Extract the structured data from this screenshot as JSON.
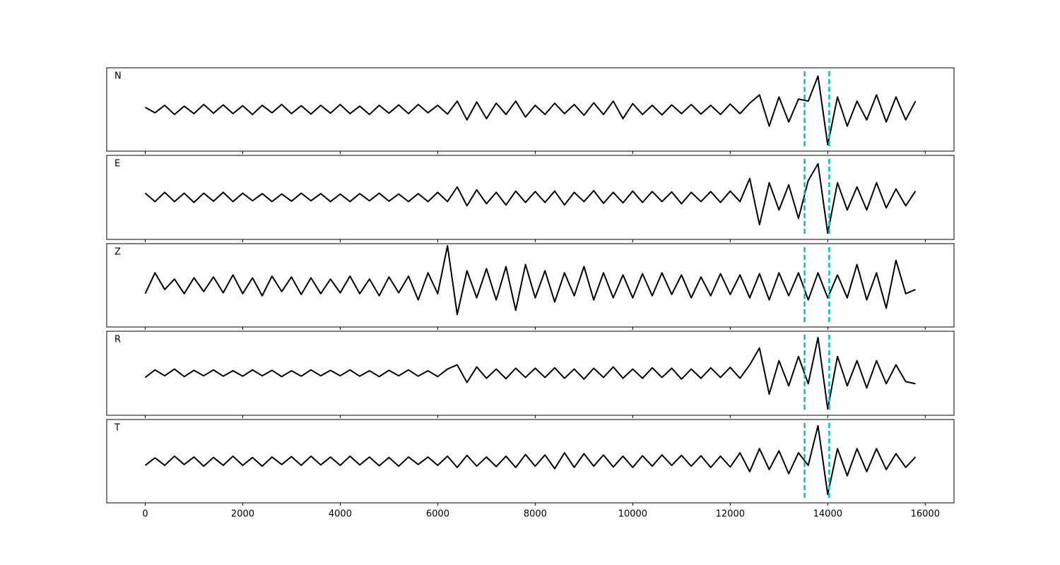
{
  "chart_data": {
    "type": "line",
    "xlim": [
      -790,
      16590
    ],
    "xticks": [
      0,
      2000,
      4000,
      6000,
      8000,
      10000,
      12000,
      14000,
      16000
    ],
    "ylim": [
      -1,
      1
    ],
    "vlines": [
      13525,
      14030
    ],
    "vline_color": "#00bfbf",
    "x": [
      0,
      200,
      400,
      600,
      800,
      1000,
      1200,
      1400,
      1600,
      1800,
      2000,
      2200,
      2400,
      2600,
      2800,
      3000,
      3200,
      3400,
      3600,
      3800,
      4000,
      4200,
      4400,
      4600,
      4800,
      5000,
      5200,
      5400,
      5600,
      5800,
      6000,
      6200,
      6400,
      6600,
      6800,
      7000,
      7200,
      7400,
      7600,
      7800,
      8000,
      8200,
      8400,
      8600,
      8800,
      9000,
      9200,
      9400,
      9600,
      9800,
      10000,
      10200,
      10400,
      10600,
      10800,
      11000,
      11200,
      11400,
      11600,
      11800,
      12000,
      12200,
      12400,
      12600,
      12800,
      13000,
      13200,
      13400,
      13600,
      13800,
      14000,
      14200,
      14400,
      14600,
      14800,
      15000,
      15200,
      15400,
      15600,
      15800
    ],
    "series": [
      {
        "name": "N",
        "color": "#000000",
        "values": [
          0.05,
          -0.08,
          0.1,
          -0.12,
          0.08,
          -0.1,
          0.12,
          -0.09,
          0.11,
          -0.1,
          0.09,
          -0.12,
          0.1,
          -0.08,
          0.12,
          -0.1,
          0.09,
          -0.11,
          0.1,
          -0.09,
          0.12,
          -0.1,
          0.08,
          -0.12,
          0.1,
          -0.09,
          0.11,
          -0.1,
          0.12,
          -0.08,
          0.1,
          -0.11,
          0.2,
          -0.25,
          0.18,
          -0.22,
          0.15,
          -0.12,
          0.2,
          -0.18,
          0.1,
          -0.12,
          0.15,
          -0.1,
          0.12,
          -0.14,
          0.16,
          -0.12,
          0.2,
          -0.22,
          0.14,
          -0.12,
          0.1,
          -0.13,
          0.11,
          -0.1,
          0.12,
          -0.11,
          0.1,
          -0.12,
          0.13,
          -0.1,
          0.15,
          0.35,
          -0.4,
          0.3,
          -0.3,
          0.25,
          0.2,
          0.8,
          -0.85,
          0.3,
          -0.4,
          0.2,
          -0.25,
          0.35,
          -0.3,
          0.3,
          -0.25,
          0.2
        ]
      },
      {
        "name": "E",
        "color": "#000000",
        "values": [
          0.1,
          -0.1,
          0.12,
          -0.1,
          0.1,
          -0.12,
          0.1,
          -0.09,
          0.12,
          -0.1,
          0.1,
          -0.08,
          0.09,
          -0.1,
          0.08,
          -0.09,
          0.1,
          -0.08,
          0.09,
          -0.1,
          0.08,
          -0.1,
          0.09,
          -0.08,
          0.1,
          -0.09,
          0.08,
          -0.1,
          0.09,
          -0.1,
          0.12,
          -0.1,
          0.25,
          -0.2,
          0.18,
          -0.15,
          0.12,
          -0.18,
          0.15,
          -0.12,
          0.14,
          -0.12,
          0.15,
          -0.18,
          0.12,
          -0.1,
          0.16,
          -0.14,
          0.12,
          -0.13,
          0.15,
          -0.12,
          0.14,
          -0.1,
          0.13,
          -0.15,
          0.12,
          -0.1,
          0.14,
          -0.12,
          0.15,
          -0.1,
          0.45,
          -0.65,
          0.35,
          -0.3,
          0.3,
          -0.5,
          0.4,
          0.8,
          -0.85,
          0.35,
          -0.3,
          0.25,
          -0.3,
          0.35,
          -0.25,
          0.2,
          -0.2,
          0.15
        ]
      },
      {
        "name": "Z",
        "color": "#000000",
        "values": [
          -0.2,
          0.3,
          -0.1,
          0.15,
          -0.2,
          0.18,
          -0.15,
          0.2,
          -0.18,
          0.25,
          -0.2,
          0.18,
          -0.25,
          0.22,
          -0.15,
          0.2,
          -0.22,
          0.18,
          -0.2,
          0.15,
          -0.18,
          0.22,
          -0.2,
          0.15,
          -0.25,
          0.2,
          -0.18,
          0.22,
          -0.35,
          0.3,
          -0.2,
          0.95,
          -0.7,
          0.35,
          -0.3,
          0.4,
          -0.35,
          0.45,
          -0.6,
          0.5,
          -0.3,
          0.35,
          -0.4,
          0.3,
          -0.25,
          0.45,
          -0.35,
          0.3,
          -0.3,
          0.25,
          -0.3,
          0.28,
          -0.25,
          0.3,
          -0.22,
          0.25,
          -0.3,
          0.2,
          -0.25,
          0.28,
          -0.22,
          0.25,
          -0.3,
          0.28,
          -0.35,
          0.3,
          -0.25,
          0.3,
          -0.35,
          0.3,
          -0.3,
          0.25,
          -0.3,
          0.5,
          -0.35,
          0.3,
          -0.55,
          0.6,
          -0.2,
          -0.1
        ]
      },
      {
        "name": "R",
        "color": "#000000",
        "values": [
          -0.1,
          0.08,
          -0.06,
          0.1,
          -0.08,
          0.07,
          -0.06,
          0.08,
          -0.07,
          0.06,
          -0.07,
          0.08,
          -0.06,
          0.07,
          -0.08,
          0.06,
          -0.07,
          0.08,
          -0.06,
          0.07,
          -0.06,
          0.08,
          -0.07,
          0.06,
          -0.08,
          0.07,
          -0.06,
          0.08,
          -0.07,
          0.06,
          -0.08,
          0.1,
          0.2,
          -0.22,
          0.15,
          -0.12,
          0.1,
          -0.13,
          0.12,
          -0.1,
          0.12,
          -0.1,
          0.13,
          -0.12,
          0.1,
          -0.14,
          0.12,
          -0.1,
          0.15,
          -0.12,
          0.1,
          -0.12,
          0.13,
          -0.1,
          0.12,
          -0.14,
          0.1,
          -0.12,
          0.13,
          -0.1,
          0.14,
          -0.12,
          0.2,
          0.6,
          -0.5,
          0.3,
          -0.3,
          0.4,
          -0.25,
          0.85,
          -0.85,
          0.4,
          -0.3,
          0.3,
          -0.35,
          0.3,
          -0.25,
          0.2,
          -0.2,
          -0.25
        ]
      },
      {
        "name": "T",
        "color": "#000000",
        "values": [
          -0.1,
          0.08,
          -0.1,
          0.12,
          -0.08,
          0.1,
          -0.12,
          0.09,
          -0.1,
          0.12,
          -0.1,
          0.09,
          -0.12,
          0.1,
          -0.08,
          0.11,
          -0.1,
          0.12,
          -0.09,
          0.1,
          -0.1,
          0.12,
          -0.09,
          0.1,
          -0.11,
          0.09,
          -0.12,
          0.1,
          -0.08,
          0.1,
          -0.1,
          0.12,
          -0.15,
          0.14,
          -0.12,
          0.1,
          -0.13,
          0.12,
          -0.15,
          0.16,
          -0.12,
          0.15,
          -0.18,
          0.2,
          -0.15,
          0.18,
          -0.12,
          0.15,
          -0.14,
          0.12,
          -0.15,
          0.13,
          -0.12,
          0.15,
          -0.1,
          0.14,
          -0.12,
          0.13,
          -0.15,
          0.12,
          -0.14,
          0.2,
          -0.25,
          0.3,
          -0.2,
          0.25,
          -0.3,
          0.2,
          -0.1,
          0.85,
          -0.8,
          0.3,
          -0.35,
          0.3,
          -0.25,
          0.3,
          -0.2,
          0.18,
          -0.15,
          0.1
        ]
      }
    ]
  }
}
